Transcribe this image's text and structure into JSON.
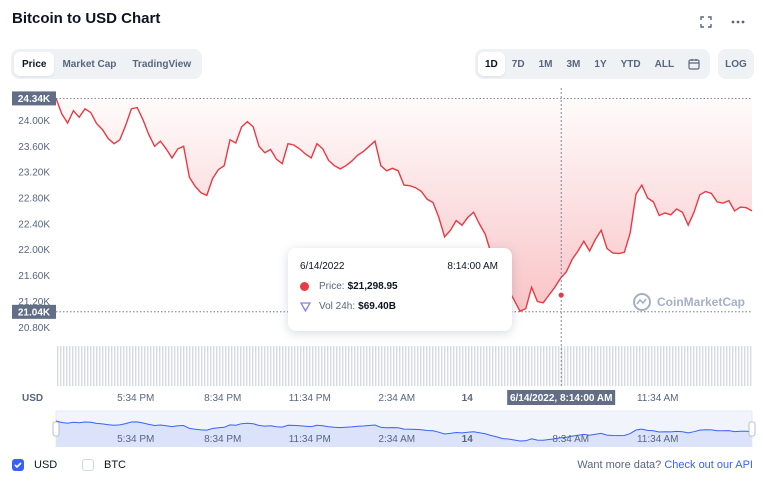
{
  "header": {
    "title": "Bitcoin to USD Chart",
    "fullscreen_icon": "expand-icon",
    "more_icon": "more-horizontal-icon"
  },
  "view_tabs": [
    {
      "label": "Price",
      "active": true
    },
    {
      "label": "Market Cap",
      "active": false
    },
    {
      "label": "TradingView",
      "active": false
    }
  ],
  "range_tabs": [
    {
      "label": "1D",
      "active": true
    },
    {
      "label": "7D",
      "active": false
    },
    {
      "label": "1M",
      "active": false
    },
    {
      "label": "3M",
      "active": false
    },
    {
      "label": "1Y",
      "active": false
    },
    {
      "label": "YTD",
      "active": false
    },
    {
      "label": "ALL",
      "active": false
    }
  ],
  "calendar_icon": "calendar-icon",
  "log_label": "LOG",
  "tooltip": {
    "date": "6/14/2022",
    "time": "8:14:00 AM",
    "price_label": "Price:",
    "price_value": "$21,298.95",
    "vol_label": "Vol 24h:",
    "vol_value": "$69.40B"
  },
  "watermark": "CoinMarketCap",
  "footer": {
    "usd_label": "USD",
    "btc_label": "BTC",
    "more_text": "Want more data?",
    "api_link": "Check out our API"
  },
  "colors": {
    "line": "#ea3943",
    "accent": "#3861fb",
    "nav_line": "#3861fb"
  },
  "chart_data": {
    "type": "area",
    "unit_label": "USD",
    "y_ticks": [
      "24.00K",
      "23.60K",
      "23.20K",
      "22.80K",
      "22.40K",
      "22.00K",
      "21.60K",
      "21.20K",
      "20.80K"
    ],
    "y_tick_values": [
      24000,
      23600,
      23200,
      22800,
      22400,
      22000,
      21600,
      21200,
      20800
    ],
    "ylim": [
      20620,
      24470
    ],
    "high_label": "24.34K",
    "high_value": 24340,
    "low_label": "21.04K",
    "low_value": 21040,
    "x_ticks": [
      "5:34 PM",
      "8:34 PM",
      "11:34 PM",
      "2:34 AM",
      "14",
      "8:34 AM",
      "11:34 AM"
    ],
    "x_tick_hours": [
      2.75,
      5.75,
      8.75,
      11.75,
      14.18,
      17.75,
      20.75
    ],
    "xlim_hours": [
      0,
      24
    ],
    "crosshair_label": "6/14/2022, 8:14:00 AM",
    "crosshair_hour": 17.42,
    "hours": [
      0,
      0.2,
      0.4,
      0.6,
      0.8,
      1.0,
      1.2,
      1.4,
      1.6,
      1.8,
      2.0,
      2.2,
      2.4,
      2.6,
      2.8,
      3.0,
      3.2,
      3.4,
      3.6,
      3.8,
      4.0,
      4.2,
      4.4,
      4.6,
      4.8,
      5.0,
      5.2,
      5.4,
      5.6,
      5.8,
      6.0,
      6.2,
      6.4,
      6.6,
      6.8,
      7.0,
      7.2,
      7.4,
      7.6,
      7.8,
      8.0,
      8.2,
      8.4,
      8.6,
      8.8,
      9.0,
      9.2,
      9.4,
      9.6,
      9.8,
      10.0,
      10.2,
      10.4,
      10.6,
      10.8,
      11.0,
      11.2,
      11.4,
      11.6,
      11.8,
      12.0,
      12.2,
      12.4,
      12.6,
      12.8,
      13.0,
      13.2,
      13.4,
      13.6,
      13.8,
      14.0,
      14.2,
      14.4,
      14.6,
      14.8,
      15.0,
      15.2,
      15.4,
      15.6,
      15.8,
      16.0,
      16.2,
      16.4,
      16.6,
      16.8,
      17.0,
      17.2,
      17.4,
      17.6,
      17.8,
      18.0,
      18.2,
      18.4,
      18.6,
      18.8,
      19.0,
      19.2,
      19.4,
      19.6,
      19.8,
      20.0,
      20.2,
      20.4,
      20.6,
      20.8,
      21.0,
      21.2,
      21.4,
      21.6,
      21.8,
      22.0,
      22.2,
      22.4,
      22.6,
      22.8,
      23.0,
      23.2,
      23.4,
      23.6,
      23.8,
      24.0
    ],
    "values": [
      24340,
      24100,
      23960,
      24150,
      24050,
      24180,
      24120,
      23950,
      23860,
      23720,
      23640,
      23700,
      23920,
      24180,
      24200,
      24010,
      23780,
      23600,
      23680,
      23560,
      23420,
      23560,
      23600,
      23120,
      22980,
      22880,
      22840,
      23100,
      23240,
      23300,
      23700,
      23650,
      23900,
      23980,
      23900,
      23600,
      23500,
      23550,
      23400,
      23330,
      23640,
      23620,
      23560,
      23480,
      23420,
      23640,
      23560,
      23380,
      23300,
      23250,
      23300,
      23370,
      23460,
      23520,
      23600,
      23680,
      23300,
      23220,
      23260,
      23220,
      23000,
      22990,
      22960,
      22900,
      22780,
      22730,
      22500,
      22200,
      22300,
      22450,
      22380,
      22500,
      22580,
      22400,
      22240,
      21950,
      21720,
      21450,
      21380,
      21220,
      21050,
      21090,
      21420,
      21200,
      21180,
      21300,
      21420,
      21560,
      21660,
      21850,
      21980,
      22130,
      21980,
      22160,
      22300,
      22020,
      21950,
      21940,
      21960,
      22260,
      22860,
      23000,
      22800,
      22740,
      22530,
      22570,
      22540,
      22630,
      22580,
      22380,
      22580,
      22850,
      22900,
      22870,
      22740,
      22720,
      22760,
      22600,
      22660,
      22650,
      22600
    ],
    "volume_series_label": "Vol 24h"
  }
}
